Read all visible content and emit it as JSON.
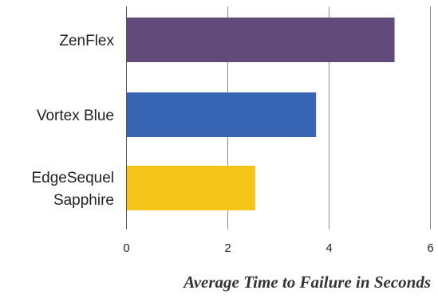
{
  "chart_data": {
    "type": "bar",
    "orientation": "horizontal",
    "categories": [
      "ZenFlex",
      "Vortex Blue",
      "EdgeSequel\nSapphire"
    ],
    "values": [
      5.3,
      3.75,
      2.55
    ],
    "colors": [
      "#624a7a",
      "#3764b3",
      "#f5c419"
    ],
    "xlim": [
      0,
      6
    ],
    "xticks": [
      "0",
      "2",
      "4",
      "6"
    ],
    "xlabel": "Average Time to Failure in Seconds",
    "ylabel": "",
    "title": "",
    "grid": true,
    "legend": "none"
  }
}
